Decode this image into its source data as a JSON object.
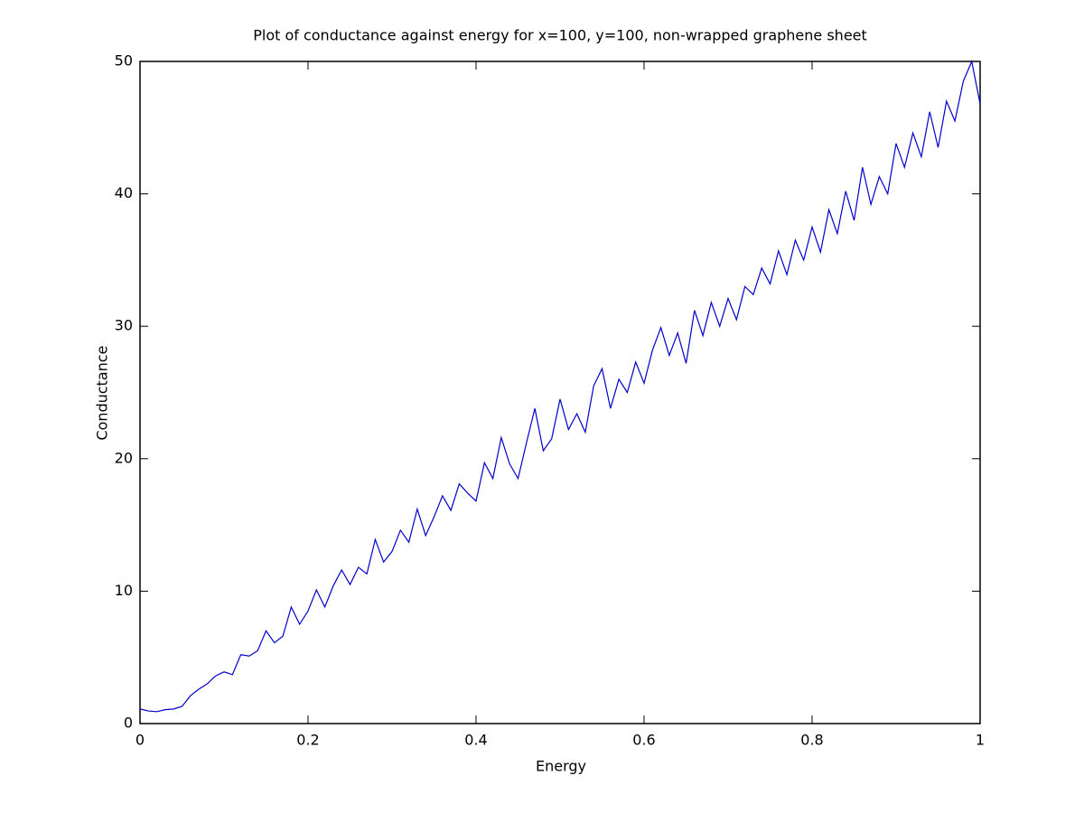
{
  "chart_data": {
    "type": "line",
    "title": "Plot of conductance against energy for x=100, y=100, non-wrapped graphene sheet",
    "xlabel": "Energy",
    "ylabel": "Conductance",
    "x": [
      0,
      0.01,
      0.02,
      0.03,
      0.04,
      0.05,
      0.06,
      0.07,
      0.08,
      0.09,
      0.1,
      0.11,
      0.12,
      0.13,
      0.14,
      0.15,
      0.16,
      0.17,
      0.18,
      0.19,
      0.2,
      0.21,
      0.22,
      0.23,
      0.24,
      0.25,
      0.26,
      0.27,
      0.28,
      0.29,
      0.3,
      0.31,
      0.32,
      0.33,
      0.34,
      0.35,
      0.36,
      0.37,
      0.38,
      0.39,
      0.4,
      0.41,
      0.42,
      0.43,
      0.44,
      0.45,
      0.46,
      0.47,
      0.48,
      0.49,
      0.5,
      0.51,
      0.52,
      0.53,
      0.54,
      0.55,
      0.56,
      0.57,
      0.58,
      0.59,
      0.6,
      0.61,
      0.62,
      0.63,
      0.64,
      0.65,
      0.66,
      0.67,
      0.68,
      0.69,
      0.7,
      0.71,
      0.72,
      0.73,
      0.74,
      0.75,
      0.76,
      0.77,
      0.78,
      0.79,
      0.8,
      0.81,
      0.82,
      0.83,
      0.84,
      0.85,
      0.86,
      0.87,
      0.88,
      0.89,
      0.9,
      0.91,
      0.92,
      0.93,
      0.94,
      0.95,
      0.96,
      0.97,
      0.98,
      0.99,
      1
    ],
    "series": [
      {
        "name": "conductance",
        "color": "#0000cc",
        "values": [
          1.1,
          0.95,
          0.9,
          1.05,
          1.1,
          1.3,
          2.1,
          2.6,
          3.0,
          3.6,
          3.9,
          3.7,
          5.2,
          5.1,
          5.5,
          7.0,
          6.1,
          6.6,
          8.8,
          7.5,
          8.5,
          10.1,
          8.8,
          10.4,
          11.6,
          10.5,
          11.8,
          11.3,
          13.9,
          12.2,
          13.0,
          14.6,
          13.7,
          16.2,
          14.2,
          15.6,
          17.2,
          16.1,
          18.1,
          17.4,
          16.8,
          19.7,
          18.5,
          21.6,
          19.6,
          18.5,
          21.2,
          23.8,
          20.6,
          21.5,
          24.5,
          22.2,
          23.4,
          22.0,
          25.5,
          26.8,
          23.8,
          26.0,
          25.0,
          27.3,
          25.7,
          28.2,
          29.9,
          27.8,
          29.5,
          27.2,
          31.2,
          29.3,
          31.8,
          30.0,
          32.1,
          30.5,
          33.0,
          32.4,
          34.4,
          33.2,
          35.7,
          33.9,
          36.5,
          35.0,
          37.5,
          35.6,
          38.8,
          37.0,
          40.2,
          38.0,
          42.0,
          39.2,
          41.3,
          40.0,
          43.8,
          42.0,
          44.6,
          42.8,
          46.2,
          43.5,
          47.0,
          45.5,
          48.5,
          50.0,
          46.8
        ]
      }
    ],
    "xlim": [
      0,
      1
    ],
    "xticks": [
      0,
      0.2,
      0.4,
      0.6,
      0.8,
      1
    ],
    "ylim": [
      0,
      50
    ],
    "yticks": [
      0,
      10,
      20,
      30,
      40,
      50
    ]
  }
}
